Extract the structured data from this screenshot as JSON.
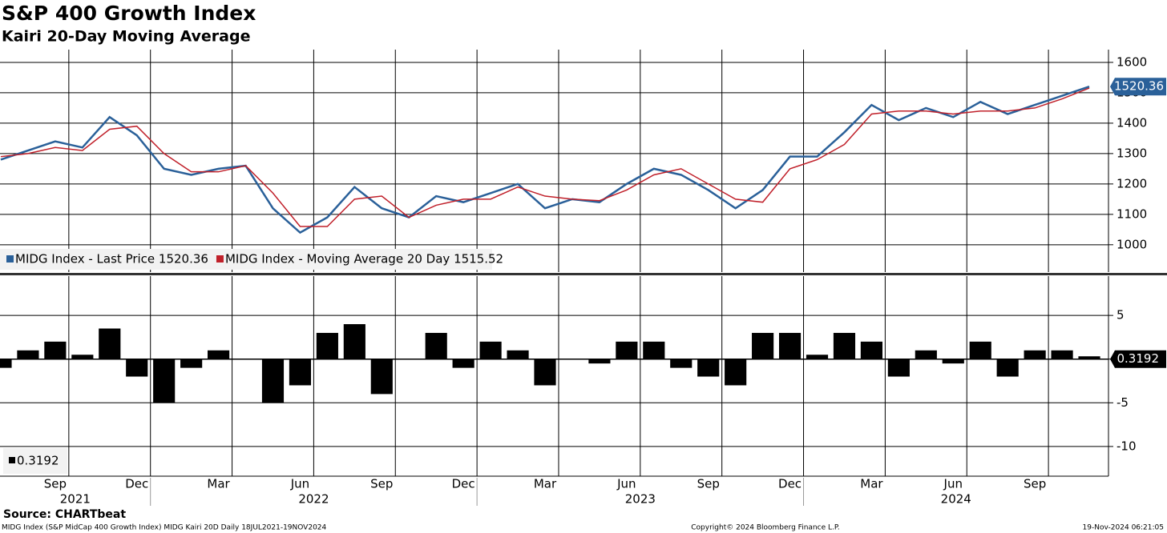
{
  "chart_data": [
    {
      "type": "line",
      "title": "S&P 400 Growth Index",
      "subtitle": "Kairi 20-Day Moving Average",
      "x": [
        "2021-07",
        "2021-08",
        "2021-09",
        "2021-10",
        "2021-11",
        "2021-12",
        "2022-01",
        "2022-02",
        "2022-03",
        "2022-04",
        "2022-05",
        "2022-06",
        "2022-07",
        "2022-08",
        "2022-09",
        "2022-10",
        "2022-11",
        "2022-12",
        "2023-01",
        "2023-02",
        "2023-03",
        "2023-04",
        "2023-05",
        "2023-06",
        "2023-07",
        "2023-08",
        "2023-09",
        "2023-10",
        "2023-11",
        "2023-12",
        "2024-01",
        "2024-02",
        "2024-03",
        "2024-04",
        "2024-05",
        "2024-06",
        "2024-07",
        "2024-08",
        "2024-09",
        "2024-10",
        "2024-11"
      ],
      "xlim": [
        "2021-07",
        "2024-12"
      ],
      "series": [
        {
          "name": "MIDG Index - Last Price 1520.36",
          "color": "#2a6099",
          "values": [
            1280,
            1310,
            1340,
            1320,
            1420,
            1360,
            1250,
            1230,
            1250,
            1260,
            1120,
            1040,
            1090,
            1190,
            1120,
            1090,
            1160,
            1140,
            1170,
            1200,
            1120,
            1150,
            1140,
            1200,
            1250,
            1230,
            1180,
            1120,
            1180,
            1290,
            1290,
            1370,
            1460,
            1410,
            1450,
            1420,
            1470,
            1430,
            1460,
            1490,
            1520.36
          ]
        },
        {
          "name": "MIDG Index - Moving Average 20 Day 1515.52",
          "color": "#c0202a",
          "values": [
            1290,
            1300,
            1320,
            1310,
            1380,
            1390,
            1300,
            1240,
            1240,
            1260,
            1170,
            1060,
            1060,
            1150,
            1160,
            1090,
            1130,
            1150,
            1150,
            1190,
            1160,
            1150,
            1145,
            1180,
            1230,
            1250,
            1200,
            1150,
            1140,
            1250,
            1280,
            1330,
            1430,
            1440,
            1440,
            1430,
            1440,
            1440,
            1450,
            1480,
            1515.52
          ]
        }
      ],
      "ylim": [
        910,
        1642
      ],
      "yticks": [
        1000,
        1100,
        1200,
        1300,
        1400,
        1500,
        1600
      ],
      "grid": true
    },
    {
      "type": "bar",
      "x": [
        "2021-07",
        "2021-08",
        "2021-09",
        "2021-10",
        "2021-11",
        "2021-12",
        "2022-01",
        "2022-02",
        "2022-03",
        "2022-04",
        "2022-05",
        "2022-06",
        "2022-07",
        "2022-08",
        "2022-09",
        "2022-10",
        "2022-11",
        "2022-12",
        "2023-01",
        "2023-02",
        "2023-03",
        "2023-04",
        "2023-05",
        "2023-06",
        "2023-07",
        "2023-08",
        "2023-09",
        "2023-10",
        "2023-11",
        "2023-12",
        "2024-01",
        "2024-02",
        "2024-03",
        "2024-04",
        "2024-05",
        "2024-06",
        "2024-07",
        "2024-08",
        "2024-09",
        "2024-10",
        "2024-11"
      ],
      "xlim": [
        "2021-07",
        "2024-12"
      ],
      "values": [
        -1,
        1,
        2,
        0.5,
        3.5,
        -2,
        -5,
        -1,
        1,
        0,
        -5,
        -3,
        3,
        4,
        -4,
        0,
        3,
        -1,
        2,
        1,
        -3,
        0,
        -0.5,
        2,
        2,
        -1,
        -2,
        -3,
        3,
        3,
        0.5,
        3,
        2,
        -2,
        1,
        -0.5,
        2,
        -2,
        1,
        1,
        0.3192
      ],
      "color": "#000000",
      "ylim": [
        -13.4,
        9.5
      ],
      "yticks": [
        -10,
        -5,
        0,
        5
      ],
      "grid": true,
      "xticks": [
        {
          "value": "2021-09",
          "label": "Sep"
        },
        {
          "value": "2021-12",
          "label": "Dec"
        },
        {
          "value": "2022-03",
          "label": "Mar"
        },
        {
          "value": "2022-06",
          "label": "Jun"
        },
        {
          "value": "2022-09",
          "label": "Sep"
        },
        {
          "value": "2022-12",
          "label": "Dec"
        },
        {
          "value": "2023-03",
          "label": "Mar"
        },
        {
          "value": "2023-06",
          "label": "Jun"
        },
        {
          "value": "2023-09",
          "label": "Sep"
        },
        {
          "value": "2023-12",
          "label": "Dec"
        },
        {
          "value": "2024-03",
          "label": "Mar"
        },
        {
          "value": "2024-06",
          "label": "Jun"
        },
        {
          "value": "2024-09",
          "label": "Sep"
        }
      ],
      "years": [
        2021,
        2022,
        2023,
        2024
      ]
    }
  ],
  "source": "Source: CHARTbeat",
  "footer": {
    "left": "MIDG Index (S&P MidCap 400 Growth Index) MIDG Kairi 20D  Daily 18JUL2021-19NOV2024",
    "center": "Copyright© 2024 Bloomberg Finance L.P.",
    "right": "19-Nov-2024 06:21:05"
  }
}
